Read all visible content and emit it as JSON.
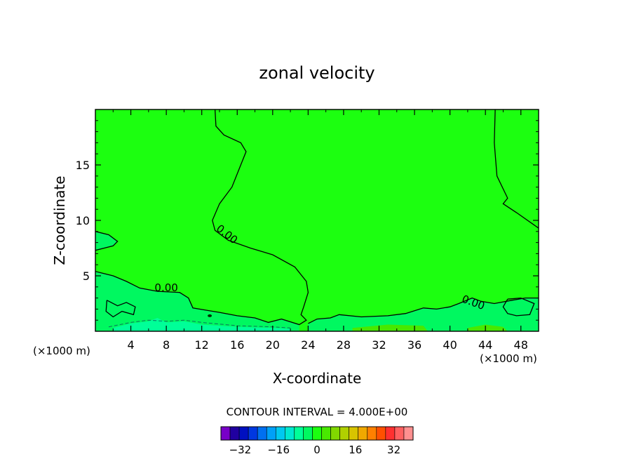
{
  "chart_data": {
    "type": "heatmap",
    "title": "zonal velocity",
    "xlabel": "X-coordinate",
    "ylabel": "Z-coordinate",
    "x_unit": "(×1000 m)",
    "x_unit_right": "(×1000 m)",
    "xlim": [
      0,
      50
    ],
    "ylim": [
      0,
      20
    ],
    "x_ticks": [
      "4",
      "8",
      "12",
      "16",
      "20",
      "24",
      "28",
      "32",
      "36",
      "40",
      "44",
      "48"
    ],
    "y_ticks": [
      "5",
      "10",
      "15"
    ],
    "contour_labels": [
      {
        "text": "0.00",
        "x": 14.6,
        "z": 8.5
      },
      {
        "text": "0.00",
        "x": 8.0,
        "z": 3.6
      },
      {
        "text": "0.00",
        "x": 42.5,
        "z": 2.3
      }
    ],
    "zero_contours": [
      [
        [
          13.5,
          20
        ],
        [
          13.6,
          18.5
        ],
        [
          14.5,
          17.7
        ],
        [
          16.4,
          17.0
        ],
        [
          17.0,
          16.2
        ],
        [
          16.4,
          15
        ],
        [
          15.4,
          13.0
        ],
        [
          14.0,
          11.5
        ],
        [
          13.2,
          10.0
        ],
        [
          13.5,
          9.1
        ],
        [
          15.0,
          8.2
        ],
        [
          17.5,
          7.5
        ],
        [
          20.0,
          6.9
        ],
        [
          22.5,
          5.8
        ],
        [
          23.8,
          4.5
        ],
        [
          24.0,
          3.5
        ],
        [
          23.5,
          2.2
        ],
        [
          23.2,
          1.5
        ],
        [
          23.8,
          1.0
        ],
        [
          23.0,
          0.6
        ],
        [
          21.0,
          1.1
        ],
        [
          19.5,
          0.8
        ],
        [
          18.0,
          1.2
        ],
        [
          16.0,
          1.4
        ],
        [
          14.0,
          1.7
        ],
        [
          12.5,
          1.9
        ],
        [
          11.0,
          2.1
        ],
        [
          10.5,
          3.0
        ],
        [
          9.5,
          3.5
        ],
        [
          7.0,
          3.6
        ],
        [
          5.0,
          3.9
        ],
        [
          3.5,
          4.5
        ],
        [
          2.0,
          5.0
        ],
        [
          0,
          5.4
        ]
      ],
      [
        [
          0,
          9.0
        ],
        [
          1.5,
          8.7
        ],
        [
          2.5,
          8.1
        ],
        [
          2.0,
          7.7
        ],
        [
          1.0,
          7.5
        ],
        [
          0,
          7.3
        ]
      ],
      [
        [
          45.1,
          20
        ],
        [
          45.0,
          17.0
        ],
        [
          45.3,
          14.0
        ],
        [
          46.5,
          12.0
        ],
        [
          46.0,
          11.5
        ],
        [
          47.5,
          10.7
        ],
        [
          50,
          9.3
        ]
      ],
      [
        [
          50,
          3.0
        ],
        [
          48.5,
          3.0
        ],
        [
          47.0,
          2.8
        ],
        [
          45.0,
          2.5
        ],
        [
          43.5,
          2.7
        ],
        [
          42.5,
          3.0
        ],
        [
          41.0,
          2.5
        ],
        [
          40.0,
          2.2
        ],
        [
          38.5,
          2.0
        ],
        [
          37.0,
          2.1
        ],
        [
          35.0,
          1.6
        ],
        [
          33.0,
          1.4
        ],
        [
          30.0,
          1.3
        ],
        [
          27.5,
          1.5
        ],
        [
          26.5,
          1.2
        ],
        [
          25.0,
          1.1
        ],
        [
          24.0,
          0.7
        ]
      ],
      [
        [
          1.3,
          2.8
        ],
        [
          2.5,
          2.3
        ],
        [
          3.5,
          2.6
        ],
        [
          4.5,
          2.2
        ],
        [
          4.3,
          1.5
        ],
        [
          3.0,
          1.8
        ],
        [
          2.0,
          1.3
        ],
        [
          1.2,
          1.8
        ],
        [
          1.3,
          2.8
        ]
      ],
      [
        [
          46.5,
          2.9
        ],
        [
          48.0,
          3.0
        ],
        [
          49.5,
          2.5
        ],
        [
          49.0,
          1.5
        ],
        [
          47.5,
          1.4
        ],
        [
          46.5,
          1.6
        ],
        [
          46.0,
          2.2
        ],
        [
          46.5,
          2.9
        ]
      ]
    ],
    "colorbar": {
      "title": "CONTOUR INTERVAL = 4.000E+00",
      "labels": [
        "-32",
        "-16",
        "0",
        "16",
        "32"
      ],
      "label_values": [
        -32,
        -16,
        0,
        16,
        32
      ],
      "levels": [
        -40,
        40
      ],
      "colors": [
        "#7800c8",
        "#2000a0",
        "#0010c0",
        "#0038e0",
        "#0070f0",
        "#00a0f8",
        "#00c8f0",
        "#00e8d0",
        "#00ff98",
        "#00f860",
        "#1cff10",
        "#48e800",
        "#80d800",
        "#b0d000",
        "#d8c400",
        "#f0a800",
        "#ff8000",
        "#ff5000",
        "#ff3030",
        "#ff6060",
        "#ff9090"
      ]
    },
    "fills": {
      "background": "#1cff10",
      "low_region": "#00f860",
      "negative_strip": "#00ff98",
      "weak_positive": "#48e800"
    }
  }
}
